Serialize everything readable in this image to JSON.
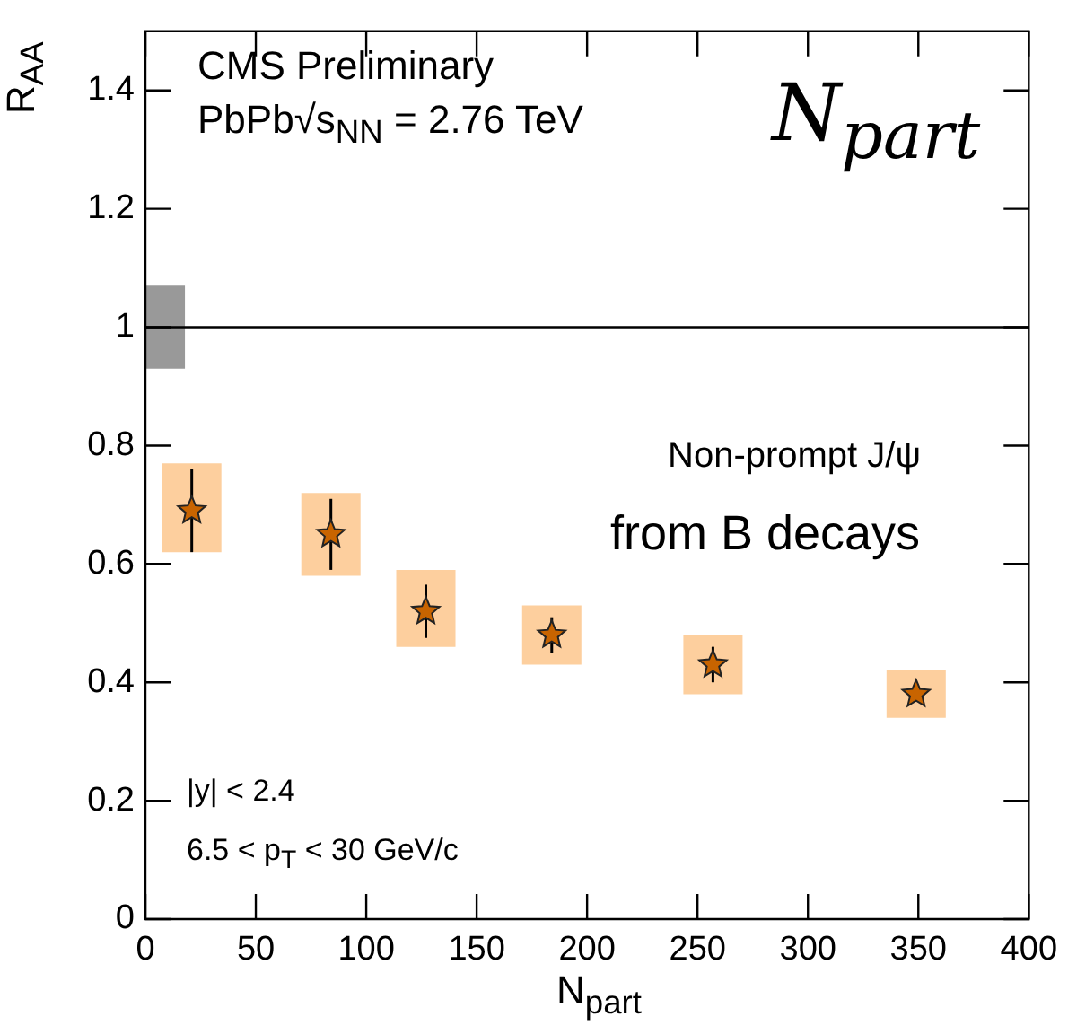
{
  "chart_data": {
    "type": "scatter",
    "ylabel": "R$_{AA}$",
    "xlabel": "N$_{part}$",
    "annotations": [
      "CMS Preliminary",
      "PbPb√s$_{NN}$ = 2.76 TeV",
      "N$_{part}$",
      "Non-prompt J/ψ",
      "from B decays",
      "|y| < 2.4",
      "6.5 < p$_{T}$ < 30 GeV/c"
    ],
    "series": [
      {
        "type": "bar",
        "x": [
          4.5,
          21,
          84,
          127,
          184,
          257,
          349
        ],
        "base": [
          0.93,
          0.62,
          0.58,
          0.46,
          0.43,
          0.38,
          0.34
        ],
        "values": [
          0.14,
          0.15,
          0.14,
          0.13,
          0.1,
          0.1,
          0.08
        ],
        "colors": [
          "#999999",
          "#fdcf9e",
          "#fdcf9e",
          "#fdcf9e",
          "#fdcf9e",
          "#fdcf9e",
          "#fdcf9e"
        ]
      },
      {
        "type": "scatter",
        "color": "#c86400",
        "x": [
          21,
          84,
          127,
          184,
          257,
          349
        ],
        "values": [
          0.69,
          0.65,
          0.52,
          0.48,
          0.43,
          0.38
        ],
        "errors": [
          0.07,
          0.06,
          0.045,
          0.03,
          0.03,
          null
        ]
      }
    ],
    "marker": "star",
    "legend": false,
    "grid": false,
    "xlim": [
      0,
      400
    ],
    "xticks": [
      0,
      50,
      100,
      150,
      200,
      250,
      300,
      350,
      400
    ],
    "ylim": [
      0,
      1.5
    ],
    "yticks": [
      0,
      0.2,
      0.4,
      0.6,
      0.8,
      1,
      1.2,
      1.4
    ],
    "ref_lines": [
      {
        "axis": "y",
        "value": 1,
        "color": "#000000",
        "line_style": "solid"
      }
    ]
  }
}
